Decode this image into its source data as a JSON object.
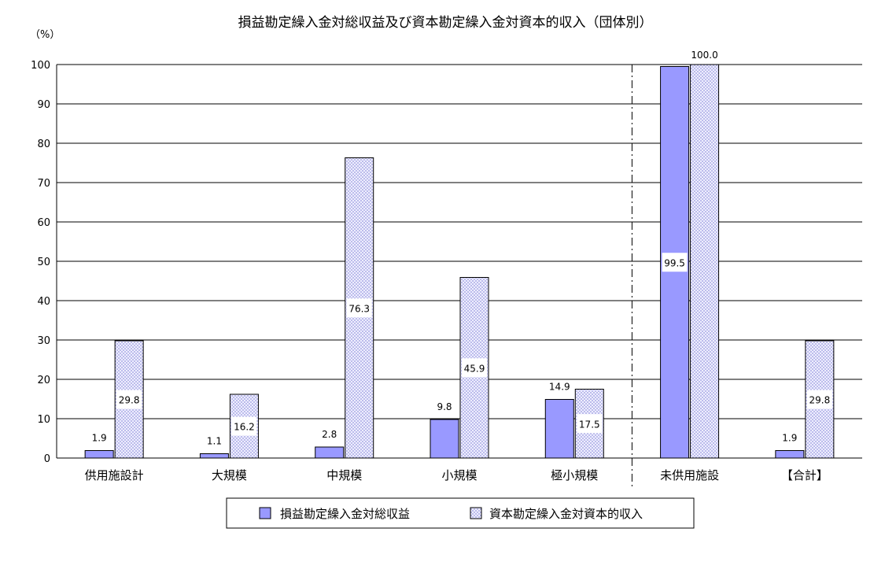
{
  "chart_data": {
    "type": "bar",
    "title": "損益勘定繰入金対総収益及び資本勘定繰入金対資本的収入（団体別）",
    "ylabel": "（%）",
    "xlabel": "",
    "ylim": [
      0,
      100
    ],
    "yticks": [
      0,
      10,
      20,
      30,
      40,
      50,
      60,
      70,
      80,
      90,
      100
    ],
    "grid": true,
    "legend_position": "bottom",
    "categories": [
      "供用施設計",
      "大規模",
      "中規模",
      "小規模",
      "極小規模",
      "未供用施設",
      "【合計】"
    ],
    "separator_after_category_index": 4,
    "series": [
      {
        "name": "損益勘定繰入金対総収益",
        "values": [
          1.9,
          1.1,
          2.8,
          9.8,
          14.9,
          99.5,
          1.9
        ],
        "labels": [
          "1.9",
          "1.1",
          "2.8",
          "9.8",
          "14.9",
          "99.5",
          "1.9"
        ],
        "color": "#9999ff",
        "pattern": "solid"
      },
      {
        "name": "資本勘定繰入金対資本的収入",
        "values": [
          29.8,
          16.2,
          76.3,
          45.9,
          17.5,
          100.0,
          29.8
        ],
        "labels": [
          "29.8",
          "16.2",
          "76.3",
          "45.9",
          "17.5",
          "100.0",
          "29.8"
        ],
        "color": "#ccccff",
        "pattern": "dotted"
      }
    ]
  }
}
